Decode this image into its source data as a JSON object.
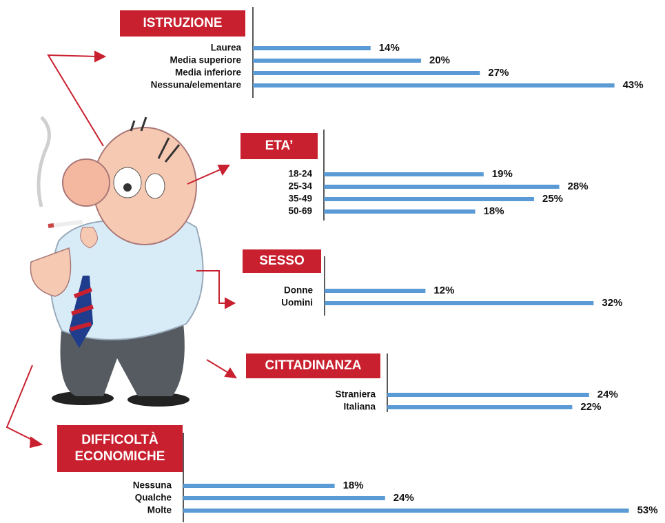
{
  "chart_data": [
    {
      "type": "bar",
      "title": "ISTRUZIONE",
      "color": "#5b9bd5",
      "categories": [
        "Laurea",
        "Media superiore",
        "Media inferiore",
        "Nessuna/elementare"
      ],
      "values": [
        14,
        20,
        27,
        43
      ],
      "value_labels": [
        "14%",
        "20%",
        "27%",
        "43%"
      ]
    },
    {
      "type": "bar",
      "title": "ETA’",
      "color": "#5b9bd5",
      "categories": [
        "18-24",
        "25-34",
        "35-49",
        "50-69"
      ],
      "values": [
        19,
        28,
        25,
        18
      ],
      "value_labels": [
        "19%",
        "28%",
        "25%",
        "18%"
      ]
    },
    {
      "type": "bar",
      "title": "SESSO",
      "color": "#5b9bd5",
      "categories": [
        "Donne",
        "Uomini"
      ],
      "values": [
        12,
        32
      ],
      "value_labels": [
        "12%",
        "32%"
      ]
    },
    {
      "type": "bar",
      "title": "CITTADINANZA",
      "color": "#5b9bd5",
      "categories": [
        "Straniera",
        "Italiana"
      ],
      "values": [
        24,
        22
      ],
      "value_labels": [
        "24%",
        "22%"
      ]
    },
    {
      "type": "bar",
      "title": "DIFFICOLTÀ ECONOMICHE",
      "color": "#5b9bd5",
      "categories": [
        "Nessuna",
        "Qualche",
        "Molte"
      ],
      "values": [
        18,
        24,
        53
      ],
      "value_labels": [
        "18%",
        "24%",
        "53%"
      ]
    }
  ]
}
